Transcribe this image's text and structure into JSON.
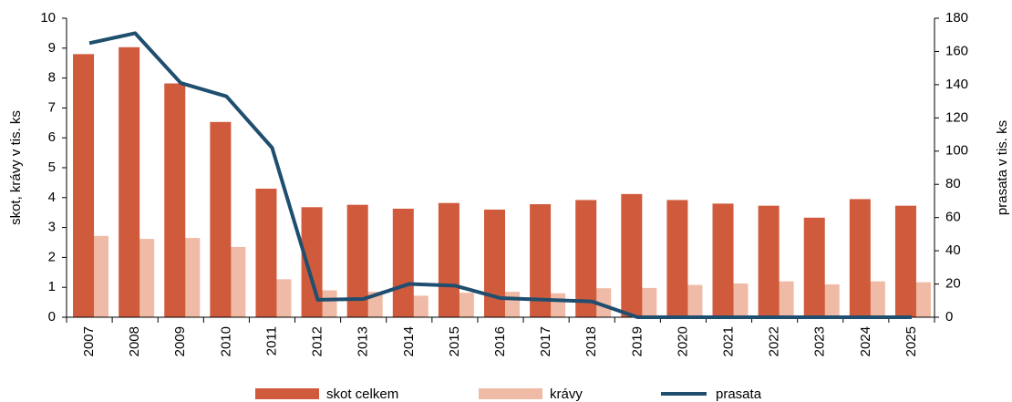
{
  "chart_data": {
    "type": "bar_line",
    "categories": [
      "2007",
      "2008",
      "2009",
      "2010",
      "2011",
      "2012",
      "2013",
      "2014",
      "2015",
      "2016",
      "2017",
      "2018",
      "2019",
      "2020",
      "2021",
      "2022",
      "2023",
      "2024",
      "2025"
    ],
    "series": [
      {
        "name": "skot celkem",
        "type": "bar",
        "color": "#d05a3c",
        "values": [
          8.8,
          9.03,
          7.82,
          6.53,
          4.3,
          3.68,
          3.76,
          3.63,
          3.82,
          3.6,
          3.78,
          3.92,
          4.12,
          3.92,
          3.8,
          3.73,
          3.33,
          3.95,
          3.73
        ]
      },
      {
        "name": "krávy",
        "type": "bar",
        "color": "#f0bba6",
        "values": [
          2.72,
          2.62,
          2.65,
          2.35,
          1.27,
          0.9,
          0.85,
          0.72,
          0.82,
          0.85,
          0.8,
          0.97,
          0.98,
          1.08,
          1.13,
          1.2,
          1.1,
          1.2,
          1.17
        ]
      },
      {
        "name": "prasata",
        "type": "line",
        "axis": "y2",
        "color": "#1f4e6e",
        "values": [
          165,
          171,
          141,
          133,
          102,
          10.5,
          11,
          20,
          19,
          11.5,
          10.5,
          9.5,
          0,
          0,
          0,
          0,
          0,
          0,
          0
        ]
      }
    ],
    "ylabel": "skot, krávy v tis. ks",
    "y2label": "prasata v tis. ks",
    "ylim": [
      0,
      10
    ],
    "yticks": [
      0,
      1,
      2,
      3,
      4,
      5,
      6,
      7,
      8,
      9,
      10
    ],
    "y2lim": [
      0,
      180
    ],
    "y2ticks": [
      0,
      20,
      40,
      60,
      80,
      100,
      120,
      140,
      160,
      180
    ],
    "legend": "bottom"
  }
}
